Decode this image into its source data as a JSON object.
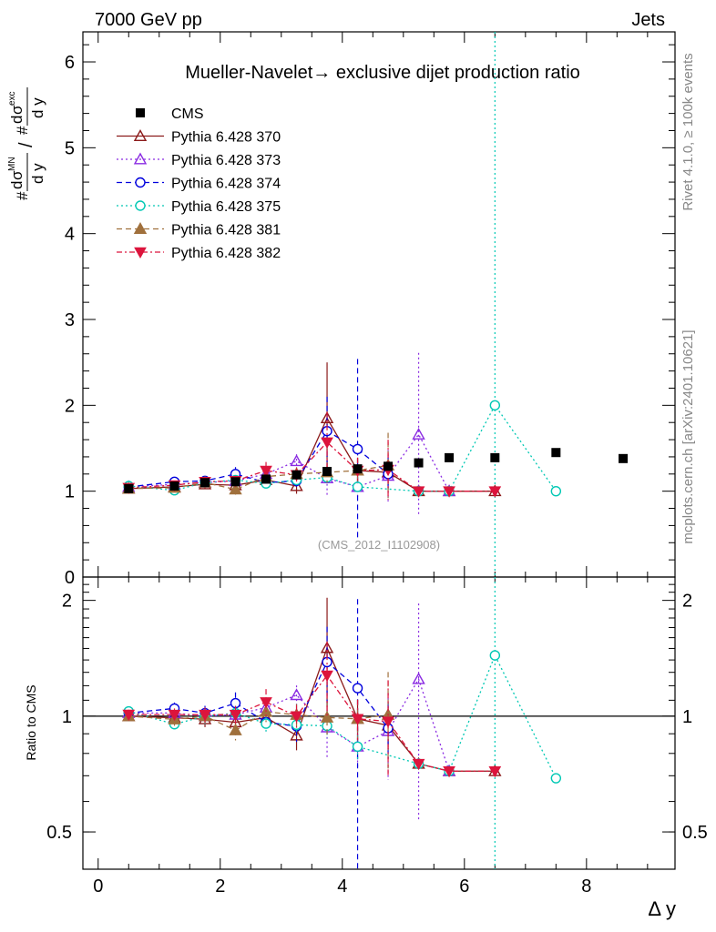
{
  "header": {
    "left": "7000 GeV pp",
    "right": "Jets",
    "side_top": "Rivet 4.1.0, ≥ 100k events",
    "side_bottom": "mcplots.cern.ch [arXiv:2401.10621]"
  },
  "chart_data": {
    "type": "scatter",
    "title": "Mueller-Navelet→ exclusive dijet production ratio",
    "watermark": "(CMS_2012_I1102908)",
    "xlabel": "Δ y",
    "ylabel": "#dσ^MN/dy / #dσ^exc/dy",
    "ylabel_parts": {
      "hash": "#",
      "d": "d",
      "sigma": "σ",
      "dy": "d y",
      "sup_mn": "MN",
      "sup_exc": "exc",
      "slash": "/"
    },
    "ratio_ylabel": "Ratio to CMS",
    "xlim": [
      -0.25,
      9.45
    ],
    "ylim": [
      0,
      6.35
    ],
    "ratio_ylim": [
      0.4,
      2.3
    ],
    "x_ticks": [
      "0",
      "2",
      "4",
      "6",
      "8"
    ],
    "y_ticks": [
      "0",
      "1",
      "2",
      "3",
      "4",
      "5",
      "6"
    ],
    "ratio_y_ticks": [
      "0.5",
      "1",
      "2"
    ],
    "legend": [
      {
        "label": "CMS"
      },
      {
        "label": "Pythia 6.428 370"
      },
      {
        "label": "Pythia 6.428 373"
      },
      {
        "label": "Pythia 6.428 374"
      },
      {
        "label": "Pythia 6.428 375"
      },
      {
        "label": "Pythia 6.428 381"
      },
      {
        "label": "Pythia 6.428 382"
      }
    ],
    "data": {
      "name": "CMS",
      "color": "#000000",
      "marker": "square",
      "x": [
        0.5,
        1.25,
        1.75,
        2.25,
        2.75,
        3.25,
        3.75,
        4.25,
        4.75,
        5.25,
        5.75,
        6.5,
        7.5,
        8.6
      ],
      "y": [
        1.03,
        1.06,
        1.1,
        1.11,
        1.14,
        1.19,
        1.23,
        1.26,
        1.29,
        1.33,
        1.39,
        1.39,
        1.45,
        1.38
      ],
      "err": [
        0.02,
        0.02,
        0.02,
        0.02,
        0.02,
        0.02,
        0.02,
        0.03,
        0.03,
        0.03,
        0.03,
        0.03,
        0.04,
        0.04
      ]
    },
    "series": [
      {
        "name": "Pythia 6.428 370",
        "color": "#8b1a1a",
        "marker": "triangle-up-open",
        "dash": "",
        "x": [
          0.5,
          1.25,
          1.75,
          2.25,
          2.75,
          3.25,
          3.75,
          4.25,
          4.75,
          5.25,
          5.75,
          6.5
        ],
        "y": [
          1.03,
          1.05,
          1.08,
          1.07,
          1.13,
          1.06,
          1.85,
          1.24,
          1.22,
          1.0,
          1.0,
          1.0
        ],
        "err": [
          0.03,
          0.04,
          0.05,
          0.06,
          0.07,
          0.09,
          0.65,
          0.15,
          0.15,
          0.02,
          0.02,
          0.02
        ]
      },
      {
        "name": "Pythia 6.428 373",
        "color": "#8a2be2",
        "marker": "triangle-up-open",
        "dash": "2,3",
        "x": [
          0.5,
          1.25,
          1.75,
          2.25,
          2.75,
          3.25,
          3.75,
          4.25,
          4.75,
          5.25,
          5.75
        ],
        "y": [
          1.05,
          1.08,
          1.1,
          1.12,
          1.2,
          1.35,
          1.15,
          1.05,
          1.18,
          1.66,
          1.0
        ],
        "err": [
          0.03,
          0.04,
          0.05,
          0.05,
          0.07,
          0.08,
          0.2,
          0.12,
          0.3,
          0.95,
          0.02
        ]
      },
      {
        "name": "Pythia 6.428 374",
        "color": "#0000dd",
        "marker": "circle-open",
        "dash": "6,4",
        "x": [
          0.5,
          1.25,
          1.75,
          2.25,
          2.75,
          3.25,
          3.75,
          4.25,
          4.75
        ],
        "y": [
          1.05,
          1.11,
          1.12,
          1.2,
          1.1,
          1.12,
          1.7,
          1.49,
          1.2
        ],
        "err": [
          0.03,
          0.04,
          0.05,
          0.08,
          0.06,
          0.1,
          0.4,
          1.05,
          0.2
        ]
      },
      {
        "name": "Pythia 6.428 375",
        "color": "#00c8b4",
        "marker": "circle-open",
        "dash": "2,3",
        "x": [
          0.5,
          1.25,
          1.75,
          2.25,
          2.75,
          3.25,
          3.75,
          4.25,
          5.25,
          5.75,
          6.5,
          7.5
        ],
        "y": [
          1.06,
          1.01,
          1.1,
          1.13,
          1.09,
          1.13,
          1.16,
          1.05,
          1.0,
          1.0,
          2.0,
          1.0
        ],
        "err": [
          0.03,
          0.03,
          0.05,
          0.05,
          0.05,
          0.06,
          0.08,
          0.08,
          0.02,
          0.02,
          10.0,
          0.02
        ]
      },
      {
        "name": "Pythia 6.428 381",
        "color": "#a0703c",
        "marker": "triangle-up-filled",
        "dash": "6,4",
        "x": [
          0.5,
          1.25,
          1.75,
          2.25,
          2.75,
          3.25,
          3.75,
          4.25,
          4.75
        ],
        "y": [
          1.03,
          1.04,
          1.1,
          1.02,
          1.17,
          1.2,
          1.22,
          1.24,
          1.3
        ],
        "err": [
          0.03,
          0.04,
          0.05,
          0.06,
          0.07,
          0.08,
          0.12,
          0.15,
          0.38
        ]
      },
      {
        "name": "Pythia 6.428 382",
        "color": "#dc143c",
        "marker": "triangle-down-filled",
        "dash": "6,3,2,3",
        "x": [
          0.5,
          1.25,
          1.75,
          2.25,
          2.75,
          3.25,
          3.75,
          4.25,
          4.75,
          5.25,
          5.75,
          6.5
        ],
        "y": [
          1.04,
          1.07,
          1.11,
          1.12,
          1.24,
          1.19,
          1.57,
          1.24,
          1.25,
          1.0,
          1.0,
          1.0
        ],
        "err": [
          0.03,
          0.04,
          0.05,
          0.06,
          0.1,
          0.08,
          0.35,
          0.15,
          0.35,
          0.02,
          0.02,
          0.02
        ]
      }
    ]
  }
}
